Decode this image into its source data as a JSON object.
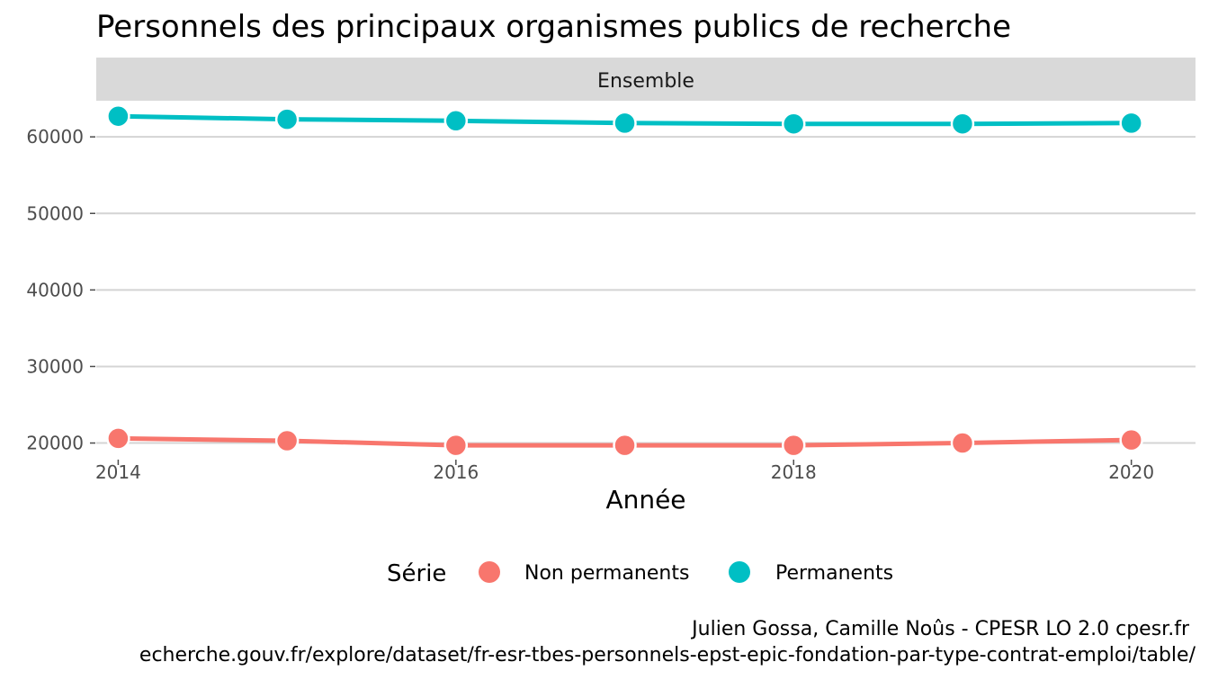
{
  "chart_data": {
    "type": "line",
    "title": "Personnels des principaux organismes publics de recherche",
    "facet_label": "Ensemble",
    "xlabel": "Année",
    "ylabel": "",
    "x": [
      2014,
      2015,
      2016,
      2017,
      2018,
      2019,
      2020
    ],
    "x_ticks": [
      "2014",
      "2016",
      "2018",
      "2020"
    ],
    "y_ticks": [
      "20000",
      "30000",
      "40000",
      "50000",
      "60000"
    ],
    "xlim": [
      2013.87,
      2020.38
    ],
    "ylim": [
      17830,
      64720
    ],
    "grid": true,
    "legend_position": "bottom",
    "legend_title": "Série",
    "series": [
      {
        "name": "Non permanents",
        "color": "#F8766D",
        "values": [
          20600,
          20300,
          19700,
          19700,
          19700,
          20000,
          20400
        ]
      },
      {
        "name": "Permanents",
        "color": "#00BFC4",
        "values": [
          62700,
          62300,
          62100,
          61800,
          61700,
          61700,
          61800
        ]
      }
    ],
    "caption_lines": [
      "Julien Gossa, Camille Noûs - CPESR LO 2.0 cpesr.fr",
      "echerche.gouv.fr/explore/dataset/fr-esr-tbes-personnels-epst-epic-fondation-par-type-contrat-emploi/table/"
    ]
  }
}
